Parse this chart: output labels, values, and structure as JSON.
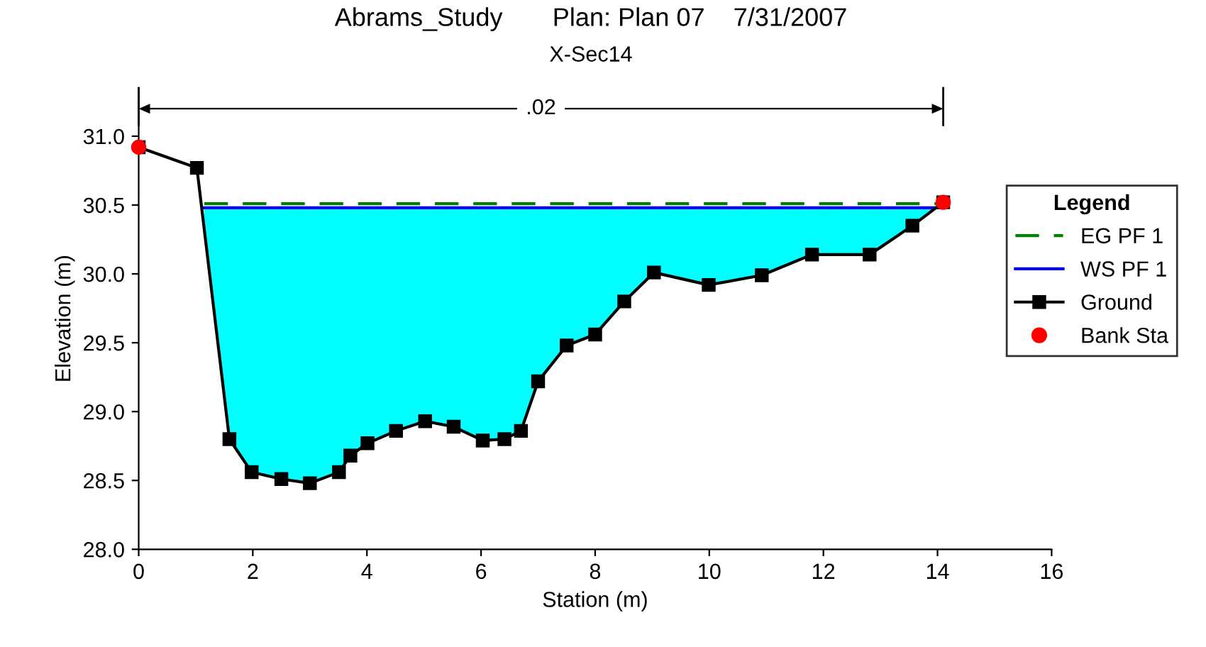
{
  "chart_data": {
    "type": "line",
    "title": "Abrams_Study       Plan: Plan 07    7/31/2007",
    "subtitle": "X-Sec14",
    "xlabel": "Station (m)",
    "ylabel": "Elevation (m)",
    "legend_title": "Legend",
    "legend": "right",
    "grid": false,
    "xlim": [
      0,
      16
    ],
    "xticks": [
      0,
      2,
      4,
      6,
      8,
      10,
      12,
      14,
      16
    ],
    "ylim": [
      28.0,
      31.35
    ],
    "yticks": [
      {
        "value": 28.0,
        "label": "28.0"
      },
      {
        "value": 28.5,
        "label": "28.5"
      },
      {
        "value": 29.0,
        "label": "29.0"
      },
      {
        "value": 29.5,
        "label": "29.5"
      },
      {
        "value": 30.0,
        "label": "30.0"
      },
      {
        "value": 30.5,
        "label": "30.5"
      },
      {
        "value": 31.0,
        "label": "31.0"
      }
    ],
    "annotations": [
      {
        "text": ".02",
        "x": 7.05,
        "y": 31.2
      }
    ],
    "series": [
      {
        "name": "EG PF 1",
        "type": "line",
        "color": "#008000",
        "line_style": "dashed",
        "marker": "none",
        "x": [
          1.15,
          14.07
        ],
        "values": [
          30.51,
          30.51
        ]
      },
      {
        "name": "WS PF 1",
        "color": "#0000ff",
        "line_style": "solid",
        "marker": "none",
        "x": [
          1.15,
          14.07
        ],
        "values": [
          30.48,
          30.48
        ]
      },
      {
        "name": "Ground",
        "type": "line",
        "color": "#000000",
        "line_style": "solid",
        "marker": "square",
        "x": [
          0,
          1.02,
          1.59,
          1.98,
          2.5,
          3.0,
          3.51,
          3.71,
          4.01,
          4.51,
          5.02,
          5.52,
          6.03,
          6.41,
          6.7,
          7.0,
          7.5,
          8.0,
          8.51,
          9.03,
          9.99,
          10.92,
          11.8,
          12.81,
          13.56,
          14.1
        ],
        "values": [
          30.92,
          30.77,
          28.8,
          28.56,
          28.51,
          28.48,
          28.56,
          28.68,
          28.77,
          28.86,
          28.93,
          28.89,
          28.79,
          28.8,
          28.86,
          29.22,
          29.48,
          29.56,
          29.8,
          30.01,
          29.92,
          29.99,
          30.14,
          30.14,
          30.35,
          30.52
        ]
      },
      {
        "name": "Bank Sta",
        "type": "scatter",
        "color": "#ff0000",
        "marker": "circle",
        "x": [
          0,
          14.1
        ],
        "values": [
          30.92,
          30.52
        ]
      }
    ]
  }
}
